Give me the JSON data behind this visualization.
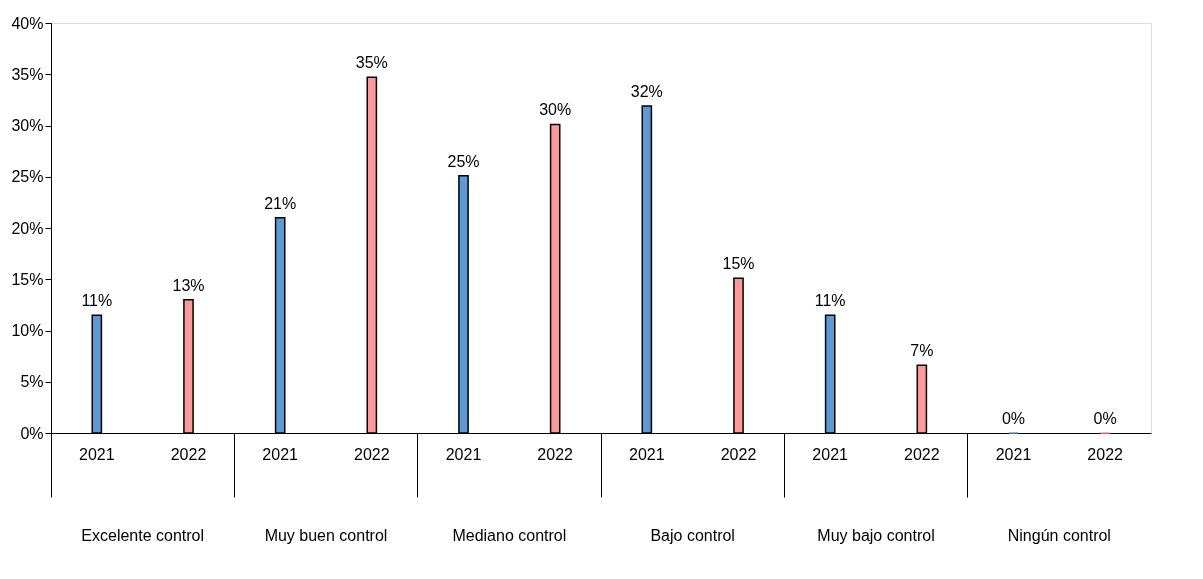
{
  "chart_data": {
    "type": "bar",
    "categories": [
      "Excelente control",
      "Muy buen control",
      "Mediano control",
      "Bajo control",
      "Muy bajo control",
      "Ningún control"
    ],
    "series": [
      {
        "name": "2021",
        "color": "#5b9bd5",
        "values": [
          11.5,
          21,
          25.1,
          31.9,
          11.5,
          0
        ],
        "value_labels": [
          "11%",
          "21%",
          "25%",
          "32%",
          "11%",
          "0%"
        ]
      },
      {
        "name": "2022",
        "color": "#ff9999",
        "values": [
          13,
          34.7,
          30.1,
          15.1,
          6.6,
          0
        ],
        "value_labels": [
          "13%",
          "35%",
          "30%",
          "15%",
          "7%",
          "0%"
        ]
      }
    ],
    "ylim": [
      0,
      40
    ],
    "yticks": [
      {
        "value": 0,
        "label": "0%"
      },
      {
        "value": 5,
        "label": "5%"
      },
      {
        "value": 10,
        "label": "10%"
      },
      {
        "value": 15,
        "label": "15%"
      },
      {
        "value": 20,
        "label": "20%"
      },
      {
        "value": 25,
        "label": "25%"
      },
      {
        "value": 30,
        "label": "30%"
      },
      {
        "value": 35,
        "label": "35%"
      },
      {
        "value": 40,
        "label": "40%"
      }
    ],
    "grid": false,
    "legend": false
  }
}
